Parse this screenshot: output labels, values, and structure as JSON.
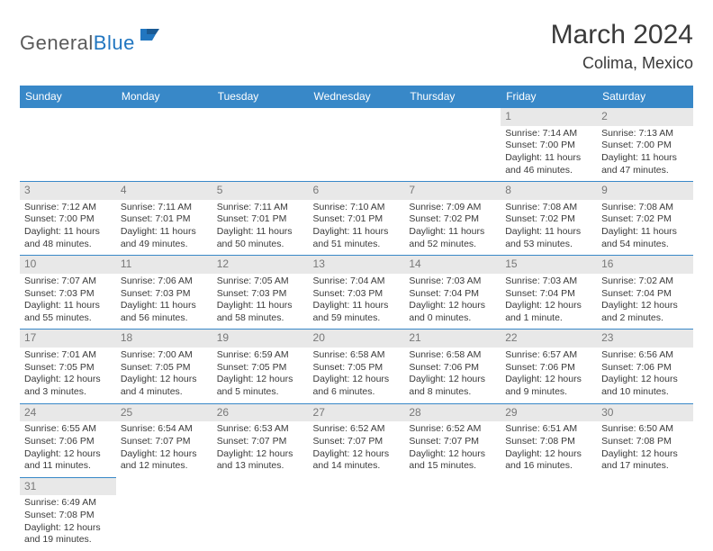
{
  "logo": {
    "text_left": "General",
    "text_right": "Blue"
  },
  "title": "March 2024",
  "subtitle": "Colima, Mexico",
  "colors": {
    "header_bg": "#3888c8",
    "header_text": "#ffffff",
    "daynum_bg": "#e8e8e8",
    "daynum_text": "#787878",
    "cell_text": "#3a3a3a",
    "border": "#3888c8",
    "logo_dark": "#5a5a5a",
    "logo_blue": "#2176c0"
  },
  "day_headers": [
    "Sunday",
    "Monday",
    "Tuesday",
    "Wednesday",
    "Thursday",
    "Friday",
    "Saturday"
  ],
  "weeks": [
    [
      null,
      null,
      null,
      null,
      null,
      {
        "n": "1",
        "sr": "Sunrise: 7:14 AM",
        "ss": "Sunset: 7:00 PM",
        "d1": "Daylight: 11 hours",
        "d2": "and 46 minutes."
      },
      {
        "n": "2",
        "sr": "Sunrise: 7:13 AM",
        "ss": "Sunset: 7:00 PM",
        "d1": "Daylight: 11 hours",
        "d2": "and 47 minutes."
      }
    ],
    [
      {
        "n": "3",
        "sr": "Sunrise: 7:12 AM",
        "ss": "Sunset: 7:00 PM",
        "d1": "Daylight: 11 hours",
        "d2": "and 48 minutes."
      },
      {
        "n": "4",
        "sr": "Sunrise: 7:11 AM",
        "ss": "Sunset: 7:01 PM",
        "d1": "Daylight: 11 hours",
        "d2": "and 49 minutes."
      },
      {
        "n": "5",
        "sr": "Sunrise: 7:11 AM",
        "ss": "Sunset: 7:01 PM",
        "d1": "Daylight: 11 hours",
        "d2": "and 50 minutes."
      },
      {
        "n": "6",
        "sr": "Sunrise: 7:10 AM",
        "ss": "Sunset: 7:01 PM",
        "d1": "Daylight: 11 hours",
        "d2": "and 51 minutes."
      },
      {
        "n": "7",
        "sr": "Sunrise: 7:09 AM",
        "ss": "Sunset: 7:02 PM",
        "d1": "Daylight: 11 hours",
        "d2": "and 52 minutes."
      },
      {
        "n": "8",
        "sr": "Sunrise: 7:08 AM",
        "ss": "Sunset: 7:02 PM",
        "d1": "Daylight: 11 hours",
        "d2": "and 53 minutes."
      },
      {
        "n": "9",
        "sr": "Sunrise: 7:08 AM",
        "ss": "Sunset: 7:02 PM",
        "d1": "Daylight: 11 hours",
        "d2": "and 54 minutes."
      }
    ],
    [
      {
        "n": "10",
        "sr": "Sunrise: 7:07 AM",
        "ss": "Sunset: 7:03 PM",
        "d1": "Daylight: 11 hours",
        "d2": "and 55 minutes."
      },
      {
        "n": "11",
        "sr": "Sunrise: 7:06 AM",
        "ss": "Sunset: 7:03 PM",
        "d1": "Daylight: 11 hours",
        "d2": "and 56 minutes."
      },
      {
        "n": "12",
        "sr": "Sunrise: 7:05 AM",
        "ss": "Sunset: 7:03 PM",
        "d1": "Daylight: 11 hours",
        "d2": "and 58 minutes."
      },
      {
        "n": "13",
        "sr": "Sunrise: 7:04 AM",
        "ss": "Sunset: 7:03 PM",
        "d1": "Daylight: 11 hours",
        "d2": "and 59 minutes."
      },
      {
        "n": "14",
        "sr": "Sunrise: 7:03 AM",
        "ss": "Sunset: 7:04 PM",
        "d1": "Daylight: 12 hours",
        "d2": "and 0 minutes."
      },
      {
        "n": "15",
        "sr": "Sunrise: 7:03 AM",
        "ss": "Sunset: 7:04 PM",
        "d1": "Daylight: 12 hours",
        "d2": "and 1 minute."
      },
      {
        "n": "16",
        "sr": "Sunrise: 7:02 AM",
        "ss": "Sunset: 7:04 PM",
        "d1": "Daylight: 12 hours",
        "d2": "and 2 minutes."
      }
    ],
    [
      {
        "n": "17",
        "sr": "Sunrise: 7:01 AM",
        "ss": "Sunset: 7:05 PM",
        "d1": "Daylight: 12 hours",
        "d2": "and 3 minutes."
      },
      {
        "n": "18",
        "sr": "Sunrise: 7:00 AM",
        "ss": "Sunset: 7:05 PM",
        "d1": "Daylight: 12 hours",
        "d2": "and 4 minutes."
      },
      {
        "n": "19",
        "sr": "Sunrise: 6:59 AM",
        "ss": "Sunset: 7:05 PM",
        "d1": "Daylight: 12 hours",
        "d2": "and 5 minutes."
      },
      {
        "n": "20",
        "sr": "Sunrise: 6:58 AM",
        "ss": "Sunset: 7:05 PM",
        "d1": "Daylight: 12 hours",
        "d2": "and 6 minutes."
      },
      {
        "n": "21",
        "sr": "Sunrise: 6:58 AM",
        "ss": "Sunset: 7:06 PM",
        "d1": "Daylight: 12 hours",
        "d2": "and 8 minutes."
      },
      {
        "n": "22",
        "sr": "Sunrise: 6:57 AM",
        "ss": "Sunset: 7:06 PM",
        "d1": "Daylight: 12 hours",
        "d2": "and 9 minutes."
      },
      {
        "n": "23",
        "sr": "Sunrise: 6:56 AM",
        "ss": "Sunset: 7:06 PM",
        "d1": "Daylight: 12 hours",
        "d2": "and 10 minutes."
      }
    ],
    [
      {
        "n": "24",
        "sr": "Sunrise: 6:55 AM",
        "ss": "Sunset: 7:06 PM",
        "d1": "Daylight: 12 hours",
        "d2": "and 11 minutes."
      },
      {
        "n": "25",
        "sr": "Sunrise: 6:54 AM",
        "ss": "Sunset: 7:07 PM",
        "d1": "Daylight: 12 hours",
        "d2": "and 12 minutes."
      },
      {
        "n": "26",
        "sr": "Sunrise: 6:53 AM",
        "ss": "Sunset: 7:07 PM",
        "d1": "Daylight: 12 hours",
        "d2": "and 13 minutes."
      },
      {
        "n": "27",
        "sr": "Sunrise: 6:52 AM",
        "ss": "Sunset: 7:07 PM",
        "d1": "Daylight: 12 hours",
        "d2": "and 14 minutes."
      },
      {
        "n": "28",
        "sr": "Sunrise: 6:52 AM",
        "ss": "Sunset: 7:07 PM",
        "d1": "Daylight: 12 hours",
        "d2": "and 15 minutes."
      },
      {
        "n": "29",
        "sr": "Sunrise: 6:51 AM",
        "ss": "Sunset: 7:08 PM",
        "d1": "Daylight: 12 hours",
        "d2": "and 16 minutes."
      },
      {
        "n": "30",
        "sr": "Sunrise: 6:50 AM",
        "ss": "Sunset: 7:08 PM",
        "d1": "Daylight: 12 hours",
        "d2": "and 17 minutes."
      }
    ],
    [
      {
        "n": "31",
        "sr": "Sunrise: 6:49 AM",
        "ss": "Sunset: 7:08 PM",
        "d1": "Daylight: 12 hours",
        "d2": "and 19 minutes."
      },
      null,
      null,
      null,
      null,
      null,
      null
    ]
  ]
}
